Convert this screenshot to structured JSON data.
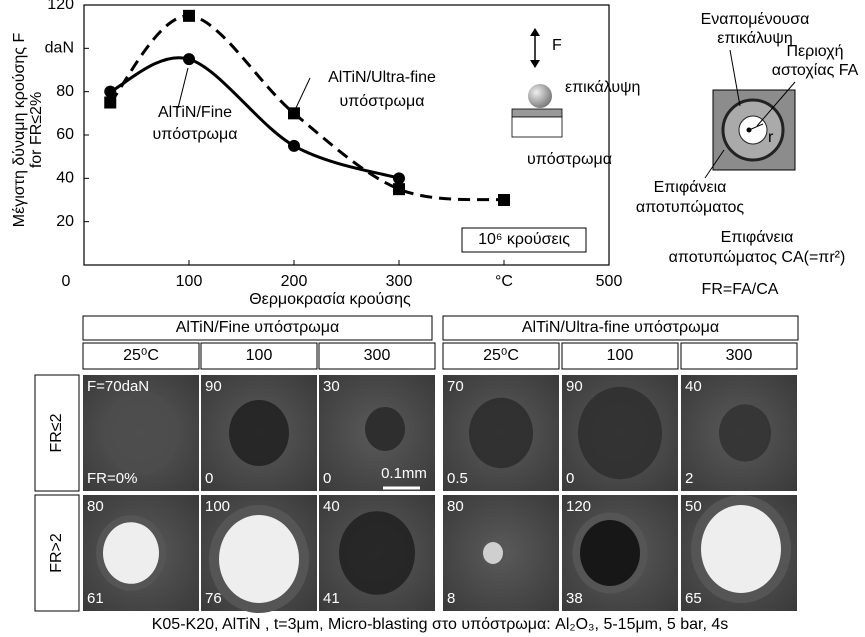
{
  "chart_data": {
    "type": "line",
    "ylabel": "Μέγιστη δύναμη κρούσης F for FR≤2%",
    "xlabel": "Θερμοκρασία κρούσης",
    "annotation": "10⁶ κρούσεις",
    "xlim": [
      0,
      500
    ],
    "xticks": [
      0,
      100,
      200,
      300,
      {
        "value": 400,
        "label": "°C"
      },
      500
    ],
    "ylim": [
      0,
      120
    ],
    "yticks": [
      20,
      40,
      60,
      80,
      {
        "value": 100,
        "label": "daN"
      },
      120
    ],
    "series": [
      {
        "name": "AlTiN/Fine υπόστρωμα",
        "color": "#000000",
        "marker": "circle",
        "dash": false,
        "x": [
          25,
          100,
          200,
          300
        ],
        "values": [
          80,
          95,
          55,
          40
        ]
      },
      {
        "name": "AlTiN/Ultra-fine υπόστρωμα",
        "color": "#000000",
        "marker": "square",
        "dash": true,
        "x": [
          25,
          100,
          200,
          300,
          400
        ],
        "values": [
          75,
          115,
          70,
          35,
          30
        ]
      }
    ]
  },
  "diagram": {
    "force": "F",
    "coating": "επικάλυψη",
    "substrate": "υπόστρωμα",
    "remaining_coating": "Εναπομένουσα επικάλυψη",
    "failure_area": "Περιοχή αστοχίας FA",
    "radius": "r",
    "imprint_surface": "Επιφάνεια αποτυπώματος",
    "imprint_area": "Επιφάνεια αποτυπώματος CA(=πr²)",
    "ratio": "FR=FA/CA"
  },
  "micrographs": {
    "groups": [
      "AlTiN/Fine υπόστρωμα",
      "AlTiN/Ultra-fine υπόστρωμα"
    ],
    "temperatures": [
      [
        "25⁰C",
        "100",
        "300"
      ],
      [
        "25⁰C",
        "100",
        "300"
      ]
    ],
    "rows": [
      "FR≤2",
      "FR>2"
    ],
    "cells": [
      [
        {
          "top": "F=70daN",
          "bottom": "FR=0%"
        },
        {
          "top": "90",
          "bottom": "0"
        },
        {
          "top": "30",
          "bottom": "0"
        },
        {
          "top": "70",
          "bottom": "0.5"
        },
        {
          "top": "90",
          "bottom": "0"
        },
        {
          "top": "40",
          "bottom": "2"
        }
      ],
      [
        {
          "top": "80",
          "bottom": "61"
        },
        {
          "top": "100",
          "bottom": "76"
        },
        {
          "top": "40",
          "bottom": "41"
        },
        {
          "top": "80",
          "bottom": "8"
        },
        {
          "top": "120",
          "bottom": "38"
        },
        {
          "top": "50",
          "bottom": "65"
        }
      ]
    ],
    "scale": "0.1mm"
  },
  "caption": "K05-K20, AlTiN , t=3μm, Micro-blasting στο υπόστρωμα: Al₂O₃, 5-15μm, 5 bar, 4s"
}
